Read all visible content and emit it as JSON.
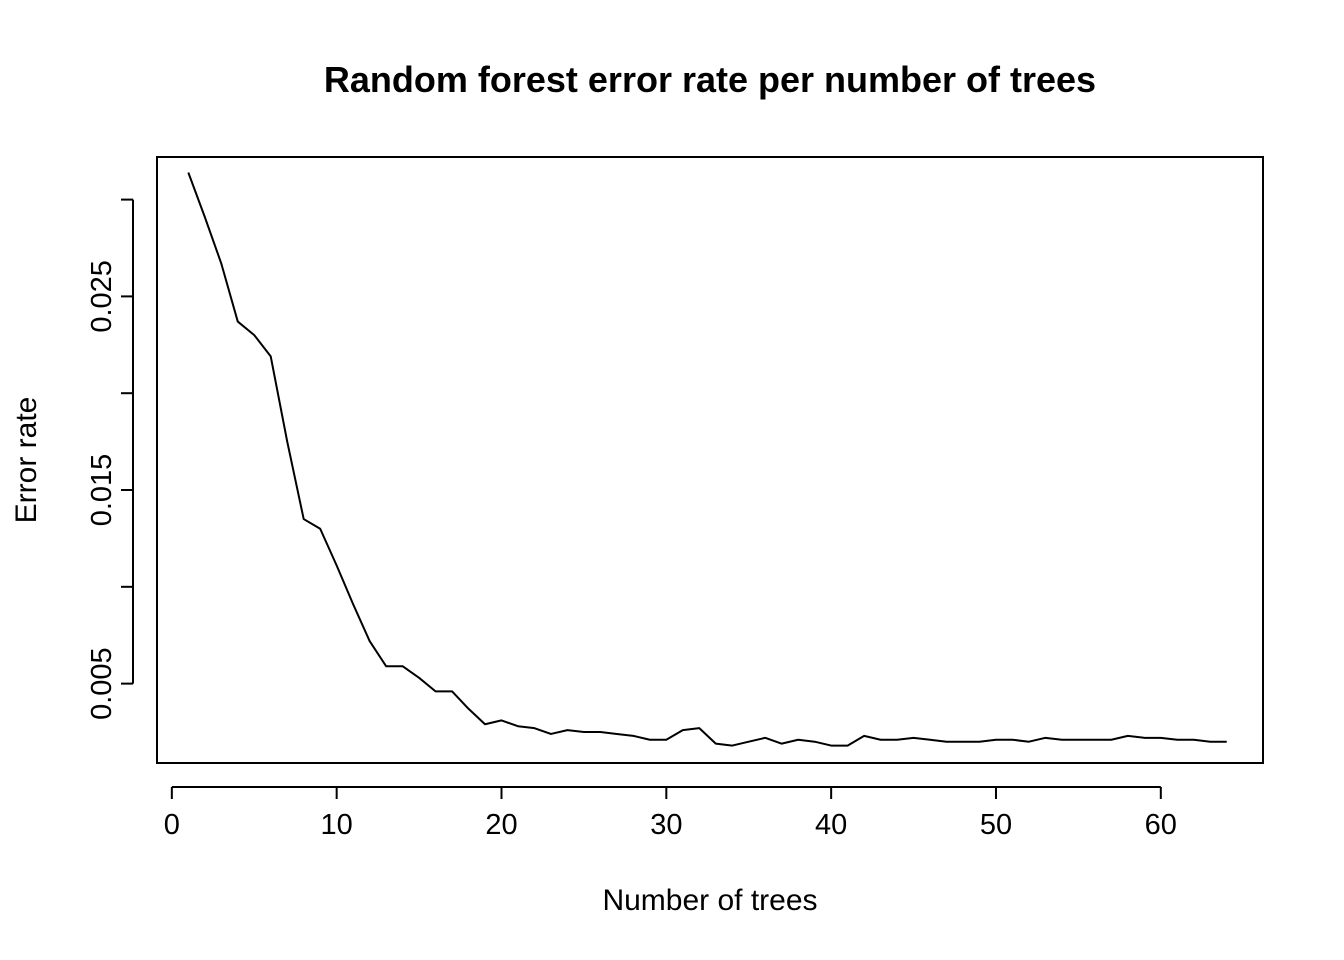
{
  "chart_data": {
    "type": "line",
    "title": "Random forest error rate per number of trees",
    "xlabel": "Number of trees",
    "ylabel": "Error rate",
    "xlim": [
      -0.9,
      66.2
    ],
    "ylim": [
      0.0009,
      0.0322
    ],
    "xticks": [
      0,
      10,
      20,
      30,
      40,
      50,
      60
    ],
    "yticks": [
      0.005,
      0.01,
      0.015,
      0.02,
      0.025,
      0.03
    ],
    "ytick_labels": [
      "0.005",
      "",
      "0.015",
      "",
      "0.025",
      ""
    ],
    "grid": false,
    "legend": "none",
    "series": [
      {
        "color": "#000000",
        "x": [
          1,
          2,
          3,
          4,
          5,
          6,
          7,
          8,
          9,
          10,
          11,
          12,
          13,
          14,
          15,
          16,
          17,
          18,
          19,
          20,
          21,
          22,
          23,
          24,
          25,
          26,
          27,
          28,
          29,
          30,
          31,
          32,
          33,
          34,
          35,
          36,
          37,
          38,
          39,
          40,
          41,
          42,
          43,
          44,
          45,
          46,
          47,
          48,
          49,
          50,
          51,
          52,
          53,
          54,
          55,
          56,
          57,
          58,
          59,
          60,
          61,
          62,
          63,
          64
        ],
        "y": [
          0.0314,
          0.0291,
          0.0267,
          0.0237,
          0.023,
          0.0219,
          0.0175,
          0.0135,
          0.013,
          0.0111,
          0.0091,
          0.0072,
          0.0059,
          0.0059,
          0.0053,
          0.0046,
          0.0046,
          0.0037,
          0.0029,
          0.0031,
          0.0028,
          0.0027,
          0.0024,
          0.0026,
          0.0025,
          0.0025,
          0.0024,
          0.0023,
          0.0021,
          0.0021,
          0.0026,
          0.0027,
          0.0019,
          0.0018,
          0.002,
          0.0022,
          0.0019,
          0.0021,
          0.002,
          0.0018,
          0.0018,
          0.0023,
          0.0021,
          0.0021,
          0.0022,
          0.0021,
          0.002,
          0.002,
          0.002,
          0.0021,
          0.0021,
          0.002,
          0.0022,
          0.0021,
          0.0021,
          0.0021,
          0.0021,
          0.0023,
          0.0022,
          0.0022,
          0.0021,
          0.0021,
          0.002,
          0.002
        ]
      }
    ]
  }
}
